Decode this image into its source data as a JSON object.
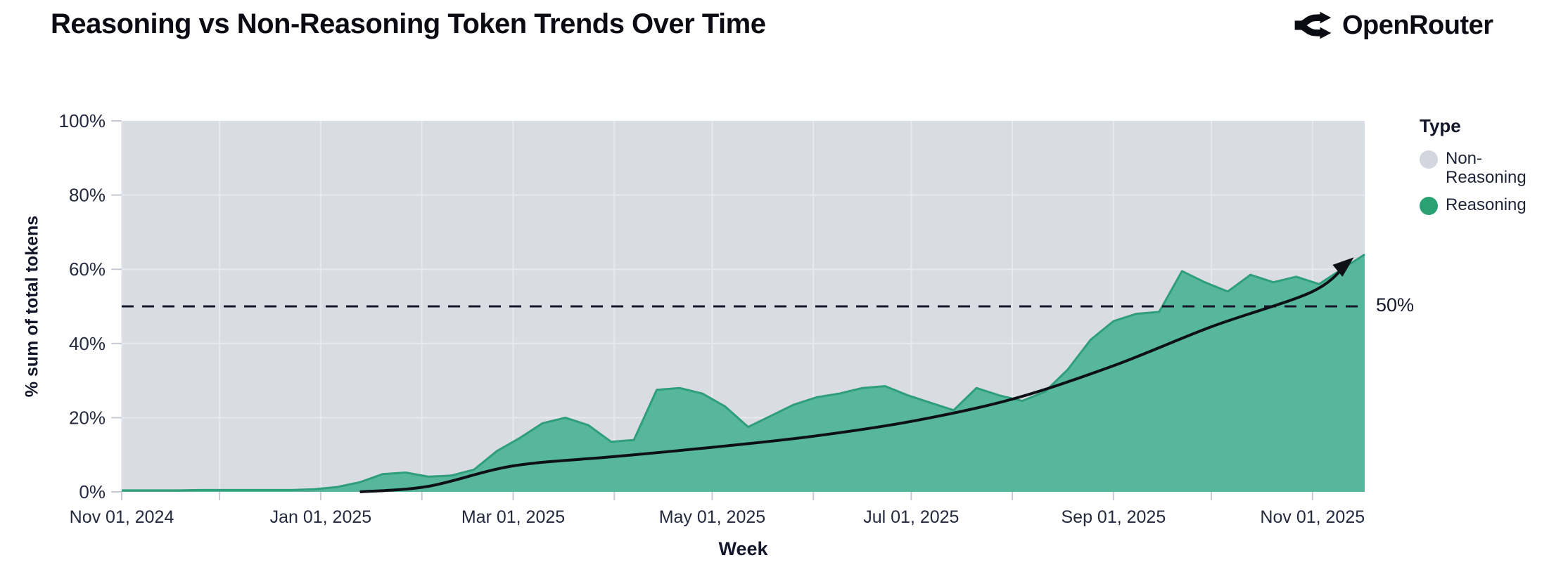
{
  "header": {
    "title": "Reasoning vs Non-Reasoning Token Trends Over Time",
    "brand": "OpenRouter"
  },
  "legend": {
    "title": "Type",
    "items": [
      {
        "label": "Non-Reasoning",
        "color": "#d4d6df"
      },
      {
        "label": "Reasoning",
        "color": "#2aa173"
      }
    ]
  },
  "annotation": {
    "label": "50%"
  },
  "axes": {
    "x_title": "Week",
    "y_title": "% sum of total tokens"
  },
  "chart_data": {
    "type": "area",
    "subtype": "100%-stacked-area",
    "title": "Reasoning vs Non-Reasoning Token Trends Over Time",
    "xlabel": "Week",
    "ylabel": "% sum of total tokens",
    "ylim": [
      0,
      100
    ],
    "grid": true,
    "legend_position": "right",
    "plot_bg": "#dadce3",
    "gridline_color": "#e7e9ef",
    "colors": {
      "reasoning_fill": "#57b79c",
      "reasoning_edge": "#2f9e7a",
      "non_reasoning": "#dadce3",
      "trend": "#0e1018",
      "reference": "#15172a"
    },
    "x": [
      "2024-11-04",
      "2024-11-11",
      "2024-11-18",
      "2024-11-25",
      "2024-12-02",
      "2024-12-09",
      "2024-12-16",
      "2024-12-23",
      "2024-12-30",
      "2025-01-06",
      "2025-01-13",
      "2025-01-20",
      "2025-01-27",
      "2025-02-03",
      "2025-02-10",
      "2025-02-17",
      "2025-02-24",
      "2025-03-03",
      "2025-03-10",
      "2025-03-17",
      "2025-03-24",
      "2025-03-31",
      "2025-04-07",
      "2025-04-14",
      "2025-04-21",
      "2025-04-28",
      "2025-05-05",
      "2025-05-12",
      "2025-05-19",
      "2025-05-26",
      "2025-06-02",
      "2025-06-09",
      "2025-06-16",
      "2025-06-23",
      "2025-06-30",
      "2025-07-07",
      "2025-07-14",
      "2025-07-21",
      "2025-07-28",
      "2025-08-04",
      "2025-08-11",
      "2025-08-18",
      "2025-08-25",
      "2025-09-01",
      "2025-09-08",
      "2025-09-15",
      "2025-09-22",
      "2025-09-29",
      "2025-10-06",
      "2025-10-13",
      "2025-10-20",
      "2025-10-27",
      "2025-11-03",
      "2025-11-10",
      "2025-11-17"
    ],
    "series": [
      {
        "name": "Reasoning",
        "values": [
          0.4,
          0.4,
          0.4,
          0.5,
          0.5,
          0.5,
          0.5,
          0.5,
          0.7,
          1.3,
          2.6,
          4.8,
          5.2,
          4.1,
          4.4,
          6.0,
          11.0,
          14.5,
          18.5,
          20.0,
          18.0,
          13.5,
          14.0,
          27.5,
          28.0,
          26.5,
          23.0,
          17.5,
          20.5,
          23.5,
          25.5,
          26.5,
          28.0,
          28.5,
          26.0,
          24.0,
          22.0,
          28.0,
          26.0,
          24.5,
          27.0,
          33.0,
          41.0,
          46.0,
          48.0,
          48.5,
          59.5,
          56.5,
          54.0,
          58.5,
          56.5,
          58.0,
          56.0,
          60.0,
          64.0
        ]
      },
      {
        "name": "Non-Reasoning",
        "values_note": "complement of Reasoning: 100 minus each Reasoning value (stacked to 100%)"
      }
    ],
    "y_ticks": [
      {
        "value": 0,
        "label": "0%"
      },
      {
        "value": 20,
        "label": "20%"
      },
      {
        "value": 40,
        "label": "40%"
      },
      {
        "value": 60,
        "label": "60%"
      },
      {
        "value": 80,
        "label": "80%"
      },
      {
        "value": 100,
        "label": "100%"
      }
    ],
    "x_ticks": [
      {
        "date": "2024-11-01",
        "label": "Nov 01, 2024"
      },
      {
        "date": "2024-12-01",
        "label": ""
      },
      {
        "date": "2025-01-01",
        "label": "Jan 01, 2025"
      },
      {
        "date": "2025-02-01",
        "label": ""
      },
      {
        "date": "2025-03-01",
        "label": "Mar 01, 2025"
      },
      {
        "date": "2025-04-01",
        "label": ""
      },
      {
        "date": "2025-05-01",
        "label": "May 01, 2025"
      },
      {
        "date": "2025-06-01",
        "label": ""
      },
      {
        "date": "2025-07-01",
        "label": "Jul 01, 2025"
      },
      {
        "date": "2025-08-01",
        "label": ""
      },
      {
        "date": "2025-09-01",
        "label": "Sep 01, 2025"
      },
      {
        "date": "2025-10-01",
        "label": ""
      },
      {
        "date": "2025-11-01",
        "label": "Nov 01, 2025"
      }
    ],
    "reference_line": {
      "value": 50,
      "label": "50%",
      "style": "dashed"
    },
    "trend_arrow": {
      "description": "smooth exponential trend curve with arrowhead",
      "points": [
        [
          "2025-01-13",
          0
        ],
        [
          "2025-02-03",
          1.5
        ],
        [
          "2025-03-01",
          7
        ],
        [
          "2025-04-01",
          9.5
        ],
        [
          "2025-05-01",
          12
        ],
        [
          "2025-06-01",
          15
        ],
        [
          "2025-07-01",
          19
        ],
        [
          "2025-08-01",
          25
        ],
        [
          "2025-09-01",
          34
        ],
        [
          "2025-10-01",
          44.5
        ],
        [
          "2025-11-01",
          54
        ],
        [
          "2025-11-12",
          62
        ]
      ]
    }
  }
}
